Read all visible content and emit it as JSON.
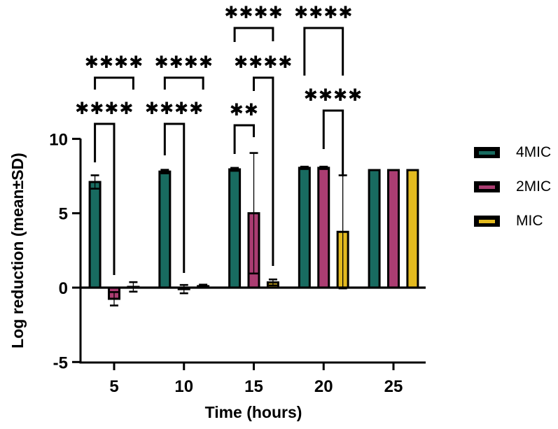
{
  "figure": {
    "background": "#ffffff",
    "accent_black": "#000000"
  },
  "legend": {
    "items": [
      {
        "label": "4MIC",
        "color": "#186b60",
        "icon": "bar-swatch"
      },
      {
        "label": "2MIC",
        "color": "#ab3d72",
        "icon": "bar-swatch"
      },
      {
        "label": "MIC",
        "color": "#e3ba1f",
        "icon": "bar-swatch"
      }
    ]
  },
  "chart_data": {
    "type": "bar",
    "title": "",
    "xlabel": "Time (hours)",
    "ylabel": "Log reduction (mean±SD)",
    "categories": [
      5,
      10,
      15,
      20,
      25
    ],
    "x_tick_labels": [
      "5",
      "10",
      "15",
      "20",
      "25"
    ],
    "y_ticks": [
      10,
      5,
      0,
      -5
    ],
    "ylim": [
      -5,
      10
    ],
    "grid": false,
    "legend_position": "right",
    "error_bars": "±SD, through bar, with caps",
    "series": [
      {
        "name": "4MIC",
        "color": "#186b60",
        "values": [
          7.1,
          7.8,
          7.95,
          8.05,
          7.9
        ],
        "sd": [
          0.45,
          0.12,
          0.1,
          0.08,
          0.05
        ]
      },
      {
        "name": "2MIC",
        "color": "#ab3d72",
        "values": [
          -0.75,
          -0.1,
          5.0,
          8.05,
          7.9
        ],
        "sd": [
          0.45,
          0.28,
          4.05,
          0.08,
          0.05
        ]
      },
      {
        "name": "MIC",
        "color": "#e3ba1f",
        "values": [
          0.05,
          0.1,
          0.35,
          3.75,
          7.9
        ],
        "sd": [
          0.32,
          0.1,
          0.2,
          3.8,
          0.05
        ]
      }
    ],
    "significance": [
      {
        "time": 5,
        "between": [
          "4MIC",
          "MIC"
        ],
        "stars": "****"
      },
      {
        "time": 5,
        "between": [
          "4MIC",
          "2MIC"
        ],
        "stars": "****"
      },
      {
        "time": 10,
        "between": [
          "4MIC",
          "MIC"
        ],
        "stars": "****"
      },
      {
        "time": 10,
        "between": [
          "4MIC",
          "2MIC"
        ],
        "stars": "****"
      },
      {
        "time": 15,
        "between": [
          "4MIC",
          "MIC"
        ],
        "stars": "****"
      },
      {
        "time": 15,
        "between": [
          "2MIC",
          "MIC"
        ],
        "stars": "****"
      },
      {
        "time": 15,
        "between": [
          "4MIC",
          "2MIC"
        ],
        "stars": "**"
      },
      {
        "time": 20,
        "between": [
          "4MIC",
          "MIC"
        ],
        "stars": "****"
      },
      {
        "time": 20,
        "between": [
          "2MIC",
          "MIC"
        ],
        "stars": "****"
      }
    ]
  }
}
